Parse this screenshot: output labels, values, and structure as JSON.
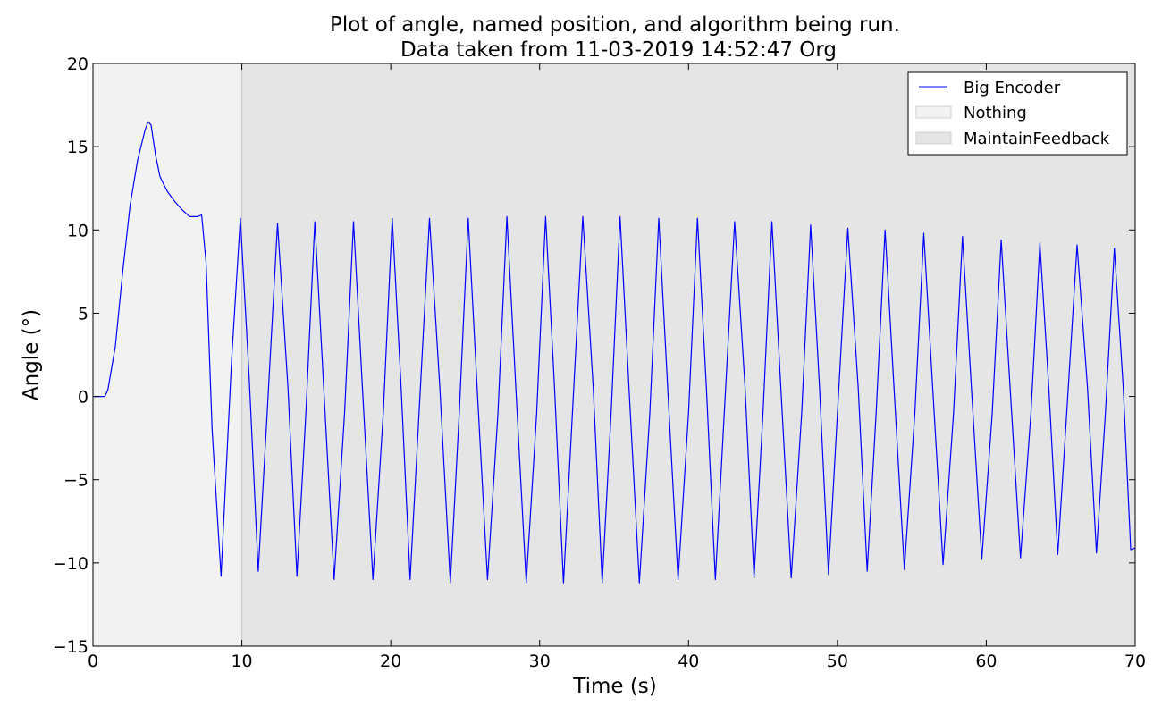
{
  "chart_data": {
    "type": "line",
    "title": "Plot of angle, named position, and algorithm being run.",
    "subtitle": "Data taken from 11-03-2019 14:52:47 Org",
    "xlabel": "Time (s)",
    "ylabel": "Angle (°)",
    "xlim": [
      0,
      70
    ],
    "ylim": [
      -15,
      20
    ],
    "xticks": [
      0,
      10,
      20,
      30,
      40,
      50,
      60,
      70
    ],
    "yticks": [
      -15,
      -10,
      -5,
      0,
      5,
      10,
      15,
      20
    ],
    "xtick_labels": [
      "0",
      "10",
      "20",
      "30",
      "40",
      "50",
      "60",
      "70"
    ],
    "ytick_labels": [
      "−15",
      "−10",
      "−5",
      "0",
      "5",
      "10",
      "15",
      "20"
    ],
    "grid": false,
    "legend_position": "top-right",
    "series": [
      {
        "name": "Big Encoder",
        "color": "#0000ff",
        "x": [
          0,
          0.8,
          1.0,
          1.5,
          2.0,
          2.5,
          3.0,
          3.5,
          3.7,
          3.9,
          4.2,
          4.5,
          5.0,
          5.5,
          6.0,
          6.5,
          7.0,
          7.3,
          7.6,
          8.0,
          8.6,
          9.3,
          9.9,
          10.5,
          11.1,
          11.7,
          12.4,
          13.1,
          13.7,
          14.3,
          14.9,
          15.5,
          16.2,
          16.9,
          17.5,
          18.1,
          18.8,
          19.5,
          20.1,
          20.7,
          21.3,
          21.9,
          22.6,
          23.3,
          24.0,
          24.6,
          25.2,
          25.8,
          26.5,
          27.2,
          27.8,
          28.4,
          29.1,
          29.8,
          30.4,
          31.0,
          31.6,
          32.2,
          32.9,
          33.6,
          34.2,
          34.8,
          35.4,
          36.0,
          36.7,
          37.4,
          38.0,
          38.6,
          39.3,
          40.0,
          40.6,
          41.2,
          41.8,
          42.4,
          43.1,
          43.8,
          44.4,
          45.0,
          45.6,
          46.2,
          46.9,
          47.6,
          48.2,
          48.8,
          49.4,
          50.0,
          50.7,
          51.4,
          52.0,
          52.6,
          53.2,
          53.8,
          54.5,
          55.2,
          55.8,
          56.4,
          57.1,
          57.8,
          58.4,
          59.0,
          59.7,
          60.4,
          61.0,
          61.6,
          62.3,
          63.0,
          63.6,
          64.2,
          64.8,
          65.4,
          66.1,
          66.8,
          67.4,
          68.0,
          68.6,
          69.2,
          69.7,
          70.0
        ],
        "y": [
          0,
          0,
          0.4,
          3.0,
          7.5,
          11.5,
          14.2,
          16.0,
          16.5,
          16.3,
          14.5,
          13.2,
          12.3,
          11.7,
          11.2,
          10.8,
          10.8,
          10.9,
          8.0,
          -2.0,
          -10.8,
          2.0,
          10.7,
          1.0,
          -10.5,
          -1.0,
          10.4,
          0.5,
          -10.8,
          -1.0,
          10.5,
          0.5,
          -11.0,
          -1.0,
          10.5,
          0.5,
          -11.0,
          -1.0,
          10.7,
          0.5,
          -11.0,
          -1.0,
          10.7,
          0.5,
          -11.2,
          -1.0,
          10.7,
          0.5,
          -11.0,
          -1.0,
          10.8,
          0.5,
          -11.2,
          -1.0,
          10.8,
          0.5,
          -11.2,
          -1.0,
          10.8,
          0.5,
          -11.2,
          -1.0,
          10.8,
          0.5,
          -11.2,
          -1.0,
          10.7,
          0.5,
          -11.0,
          -1.0,
          10.7,
          0.5,
          -11.0,
          -1.0,
          10.5,
          0.5,
          -10.9,
          -1.0,
          10.5,
          0.5,
          -10.9,
          -1.0,
          10.3,
          0.5,
          -10.7,
          -1.0,
          10.1,
          0.5,
          -10.5,
          -1.0,
          10.0,
          0.5,
          -10.4,
          -1.0,
          9.8,
          0.5,
          -10.1,
          -1.0,
          9.6,
          0.5,
          -9.8,
          -1.0,
          9.4,
          0.5,
          -9.7,
          -1.0,
          9.2,
          0.5,
          -9.5,
          -1.0,
          9.1,
          0.5,
          -9.4,
          -1.0,
          8.9,
          0.5,
          -9.2,
          -9.1
        ]
      }
    ],
    "regions": [
      {
        "name": "Nothing",
        "start": 0,
        "end": 10,
        "color": "#f2f2f2"
      },
      {
        "name": "MaintainFeedback",
        "start": 10,
        "end": 70,
        "color": "#e5e5e5"
      }
    ]
  }
}
